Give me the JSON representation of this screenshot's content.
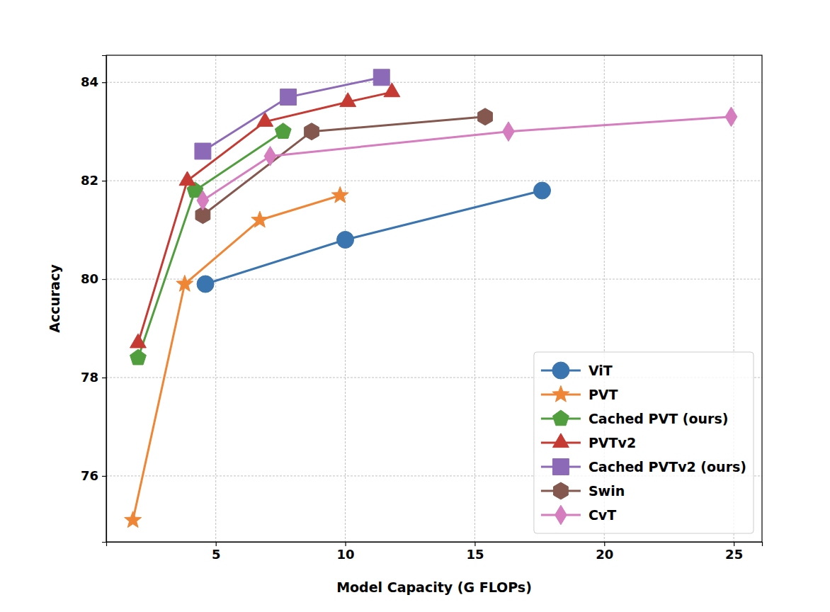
{
  "chart_data": {
    "type": "line",
    "x_label": "Model Capacity (G FLOPs)",
    "y_label": "Accuracy",
    "xlim": [
      0.77,
      26.09
    ],
    "ylim": [
      74.66,
      84.55
    ],
    "xticks": [
      5,
      10,
      15,
      20,
      25
    ],
    "yticks": [
      76,
      78,
      80,
      82,
      84
    ],
    "grid": true,
    "legend": "lower right",
    "series": [
      {
        "name": "ViT",
        "color": "#3b75af",
        "marker": "circle",
        "x": [
          4.6,
          10.0,
          17.6
        ],
        "values": [
          79.9,
          80.8,
          81.8
        ]
      },
      {
        "name": "PVT",
        "color": "#ef8636",
        "marker": "star",
        "x": [
          1.8,
          3.8,
          6.7,
          9.8
        ],
        "values": [
          75.1,
          79.9,
          81.2,
          81.7
        ]
      },
      {
        "name": "Cached PVT (ours)",
        "color": "#519e3e",
        "marker": "pentagon",
        "x": [
          2.0,
          4.2,
          7.6
        ],
        "values": [
          78.4,
          81.8,
          83.0
        ]
      },
      {
        "name": "PVTv2",
        "color": "#c53a32",
        "marker": "triangle",
        "x": [
          2.0,
          3.9,
          6.9,
          10.1,
          11.8
        ],
        "values": [
          78.7,
          82.0,
          83.2,
          83.6,
          83.8
        ]
      },
      {
        "name": "Cached PVTv2 (ours)",
        "color": "#8d6ab8",
        "marker": "square",
        "x": [
          4.5,
          7.8,
          11.4
        ],
        "values": [
          82.6,
          83.7,
          84.1
        ]
      },
      {
        "name": "Swin",
        "color": "#84584e",
        "marker": "hexagon",
        "x": [
          4.5,
          8.7,
          15.4
        ],
        "values": [
          81.3,
          83.0,
          83.3
        ]
      },
      {
        "name": "CvT",
        "color": "#d57dbf",
        "marker": "thin_diamond",
        "x": [
          4.5,
          7.1,
          16.3,
          24.9
        ],
        "values": [
          81.6,
          82.5,
          83.0,
          83.3
        ]
      }
    ]
  }
}
